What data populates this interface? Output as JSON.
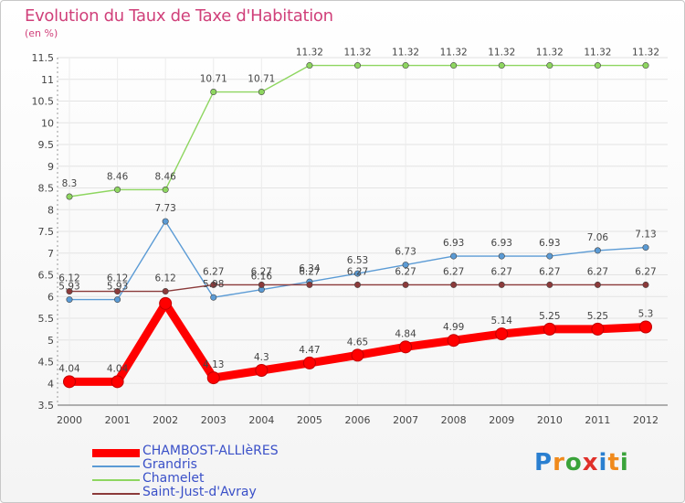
{
  "title": "Evolution du Taux de Taxe d'Habitation",
  "unit": "(en %)",
  "logo": "Proxiti",
  "chart_data": {
    "type": "line",
    "title": "Evolution du Taux de Taxe d'Habitation",
    "ylabel": "(en %)",
    "xlabel": "",
    "x": [
      "2000",
      "2001",
      "2002",
      "2003",
      "2004",
      "2005",
      "2006",
      "2007",
      "2008",
      "2009",
      "2010",
      "2011",
      "2012"
    ],
    "ylim": [
      3.5,
      11.5
    ],
    "yticks": [
      "3.5",
      "4",
      "4.5",
      "5",
      "5.5",
      "6",
      "6.5",
      "7",
      "7.5",
      "8",
      "8.5",
      "9",
      "9.5",
      "10",
      "10.5",
      "11",
      "11.5"
    ],
    "legend_position": "bottom-left",
    "series": [
      {
        "name": "CHAMBOST-ALLIèRES",
        "color": "#ff0000",
        "values": [
          4.04,
          4.04,
          5.84,
          4.13,
          4.3,
          4.47,
          4.65,
          4.84,
          4.99,
          5.14,
          5.25,
          5.25,
          5.3
        ],
        "labels": [
          "4.04",
          "4.04",
          "",
          "4.13",
          "4.3",
          "4.47",
          "4.65",
          "4.84",
          "4.99",
          "5.14",
          "5.25",
          "5.25",
          "5.3"
        ]
      },
      {
        "name": "Grandris",
        "color": "#5b9bd5",
        "values": [
          5.93,
          5.93,
          7.73,
          5.98,
          6.16,
          6.34,
          6.53,
          6.73,
          6.93,
          6.93,
          6.93,
          7.06,
          7.13
        ],
        "labels": [
          "5.93",
          "5.93",
          "7.73",
          "5.98",
          "6.16",
          "6.34",
          "6.53",
          "6.73",
          "6.93",
          "6.93",
          "6.93",
          "7.06",
          "7.13"
        ]
      },
      {
        "name": "Chamelet",
        "color": "#8ed660",
        "values": [
          8.3,
          8.46,
          8.46,
          10.71,
          10.71,
          11.32,
          11.32,
          11.32,
          11.32,
          11.32,
          11.32,
          11.32,
          11.32
        ],
        "labels": [
          "8.3",
          "8.46",
          "8.46",
          "10.71",
          "10.71",
          "11.32",
          "11.32",
          "11.32",
          "11.32",
          "11.32",
          "11.32",
          "11.32",
          "11.32"
        ]
      },
      {
        "name": "Saint-Just-d'Avray",
        "color": "#8b3a3a",
        "values": [
          6.12,
          6.12,
          6.12,
          6.27,
          6.27,
          6.27,
          6.27,
          6.27,
          6.27,
          6.27,
          6.27,
          6.27,
          6.27
        ],
        "labels": [
          "6.12",
          "6.12",
          "6.12",
          "6.27",
          "6.27",
          "6.27",
          "6.27",
          "6.27",
          "6.27",
          "6.27",
          "6.27",
          "6.27",
          "6.27"
        ]
      }
    ]
  }
}
